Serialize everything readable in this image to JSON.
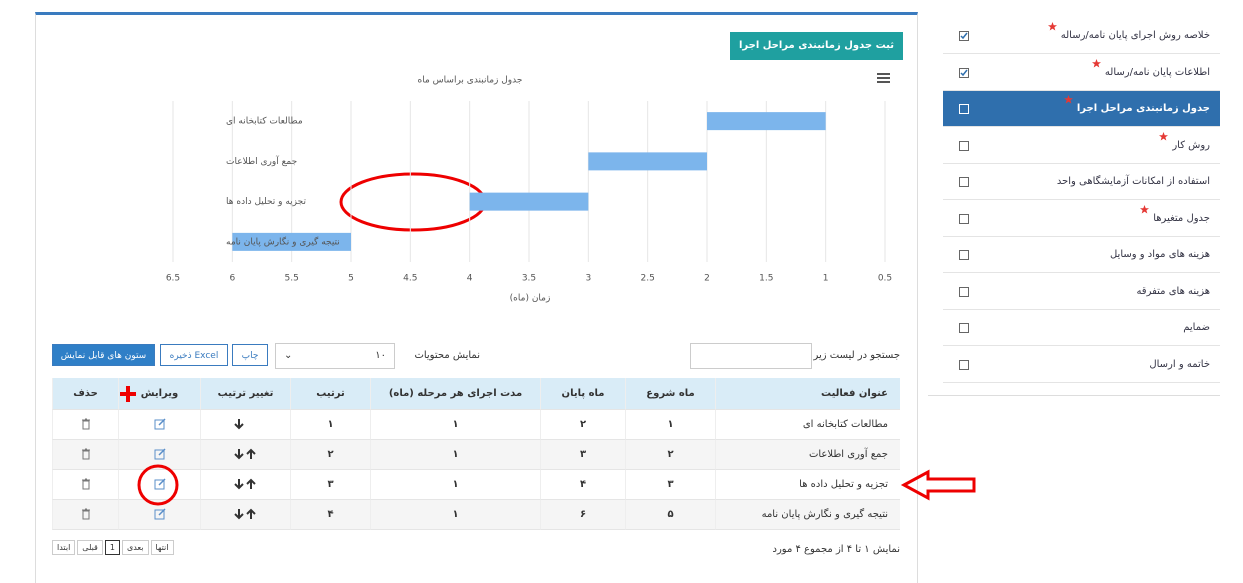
{
  "button": "ثبت جدول زمانبندی مراحل اجرا",
  "gantt": {
    "type": "gantt",
    "title": "جدول زمانبندی براساس ماه",
    "x_label": "زمان (ماه)",
    "categories": [
      "مطالعات کتابخانه ای",
      "جمع آوری اطلاعات",
      "تجزیه و تحلیل داده ها",
      "نتیجه گیری و نگارش پایان نامه"
    ],
    "starts": [
      1,
      2,
      3,
      5
    ],
    "ends": [
      2,
      3,
      4,
      6
    ],
    "color": "#7cb5ec",
    "xlim": [
      6.5,
      0.5
    ],
    "xticks": [
      6.5,
      6,
      5.5,
      5,
      4.5,
      4,
      3.5,
      3,
      2.5,
      2,
      1.5,
      1,
      0.5
    ],
    "grid": true
  },
  "controls": {
    "search_label": "جستجو در لیست زیر",
    "show_label": "نمایش محتویات",
    "page_size": "۱۰",
    "print": "چاپ",
    "excel": "ذخیره Excel",
    "columns": "ستون های قابل نمایش"
  },
  "table": {
    "headers": [
      "عنوان فعالیت",
      "ماه شروع",
      "ماه پایان",
      "مدت اجرای هر مرحله (ماه)",
      "ترتیب",
      "تغییر ترتیب",
      "ویرایش",
      "حذف"
    ],
    "rows": [
      [
        "مطالعات کتابخانه ای",
        "۱",
        "۲",
        "۱",
        "۱"
      ],
      [
        "جمع آوری اطلاعات",
        "۲",
        "۳",
        "۱",
        "۲"
      ],
      [
        "تجزیه و تحلیل داده ها",
        "۳",
        "۴",
        "۱",
        "۳"
      ],
      [
        "نتیجه گیری و نگارش پایان نامه",
        "۵",
        "۶",
        "۱",
        "۴"
      ]
    ]
  },
  "footer": {
    "info": "نمایش ۱ تا ۴ از مجموع ۴ مورد",
    "pages": [
      "ابتدا",
      "قبلی",
      "1",
      "بعدی",
      "انتها"
    ]
  },
  "sidebar": [
    {
      "label": "خلاصه روش اجرای پایان نامه/رساله",
      "required": true,
      "checked": true
    },
    {
      "label": "اطلاعات پایان نامه/رساله",
      "required": true,
      "checked": true
    },
    {
      "label": "جدول زمانبندی مراحل اجرا",
      "required": true,
      "checked": false,
      "active": true
    },
    {
      "label": "روش کار",
      "required": true,
      "checked": false
    },
    {
      "label": "استفاده از امکانات آزمایشگاهی واحد",
      "required": false,
      "checked": false
    },
    {
      "label": "جدول متغیرها",
      "required": true,
      "checked": false
    },
    {
      "label": "هزینه های مواد و وسایل",
      "required": false,
      "checked": false
    },
    {
      "label": "هزینه های متفرقه",
      "required": false,
      "checked": false
    },
    {
      "label": "ضمایم",
      "required": false,
      "checked": false
    },
    {
      "label": "خاتمه و ارسال",
      "required": false,
      "checked": false
    }
  ]
}
